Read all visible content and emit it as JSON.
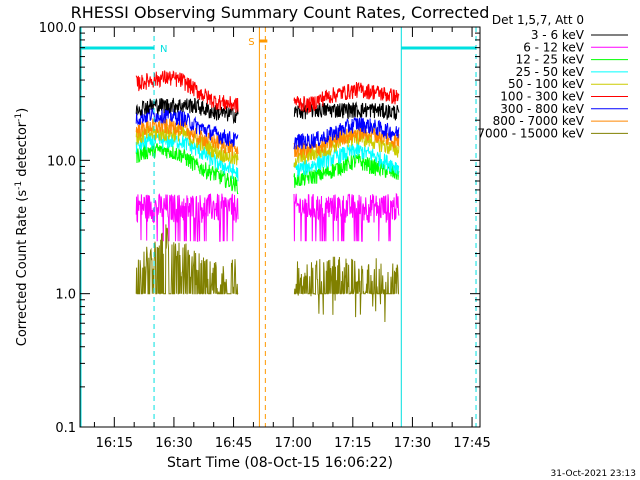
{
  "chart_data": {
    "type": "line",
    "title": "RHESSI Observing Summary Count Rates, Corrected",
    "ylabel_main": "Corrected Count Rate (s",
    "ylabel_sup1": "-1",
    "ylabel_mid": " detector",
    "ylabel_sup2": "-1",
    "ylabel_end": ")",
    "xlabel": "Start Time (08-Oct-15 16:06:22)",
    "yscale": "log",
    "ylim": [
      0.1,
      100.0
    ],
    "xlim_minutes_after_1600": [
      6.37,
      107.0
    ],
    "yticks": [
      {
        "value": 100.0,
        "label": "100.0"
      },
      {
        "value": 10.0,
        "label": "10.0"
      },
      {
        "value": 1.0,
        "label": "1.0"
      },
      {
        "value": 0.1,
        "label": "0.1"
      }
    ],
    "xticks": [
      {
        "minute": 15,
        "label": "16:15"
      },
      {
        "minute": 30,
        "label": "16:30"
      },
      {
        "minute": 45,
        "label": "16:45"
      },
      {
        "minute": 60,
        "label": "17:00"
      },
      {
        "minute": 75,
        "label": "17:15"
      },
      {
        "minute": 90,
        "label": "17:30"
      },
      {
        "minute": 105,
        "label": "17:45"
      }
    ],
    "legend": {
      "header": "Det 1,5,7, Att 0",
      "placement": "right"
    },
    "data_intervals": [
      {
        "start": 20.5,
        "end": 46.2
      },
      {
        "start": 60.2,
        "end": 86.7
      }
    ],
    "series": [
      {
        "name": "3 - 6 keV",
        "color": "#000000",
        "points": [
          [
            21,
            25
          ],
          [
            25,
            26
          ],
          [
            30,
            26
          ],
          [
            35,
            26
          ],
          [
            40,
            23
          ],
          [
            46,
            22
          ],
          [
            60,
            23
          ],
          [
            65,
            24
          ],
          [
            70,
            24
          ],
          [
            75,
            24
          ],
          [
            80,
            24
          ],
          [
            86,
            23
          ]
        ]
      },
      {
        "name": "6 - 12 keV",
        "color": "#ff00ff",
        "points": [
          [
            21,
            4.6
          ],
          [
            25,
            4.5
          ],
          [
            30,
            4.5
          ],
          [
            35,
            4.5
          ],
          [
            40,
            4.5
          ],
          [
            46,
            4.5
          ],
          [
            60,
            4.5
          ],
          [
            65,
            4.5
          ],
          [
            70,
            4.5
          ],
          [
            75,
            4.5
          ],
          [
            80,
            4.5
          ],
          [
            86,
            4.5
          ]
        ]
      },
      {
        "name": "12 - 25 keV",
        "color": "#00ff00",
        "points": [
          [
            21,
            11
          ],
          [
            24,
            12
          ],
          [
            28,
            12
          ],
          [
            32,
            11
          ],
          [
            36,
            9
          ],
          [
            40,
            8
          ],
          [
            46,
            6.5
          ],
          [
            60,
            7
          ],
          [
            64,
            7.5
          ],
          [
            68,
            8
          ],
          [
            72,
            9
          ],
          [
            76,
            10
          ],
          [
            80,
            9
          ],
          [
            86,
            8
          ]
        ]
      },
      {
        "name": "25 - 50 keV",
        "color": "#00ffff",
        "points": [
          [
            21,
            13
          ],
          [
            24,
            14
          ],
          [
            28,
            14
          ],
          [
            32,
            14
          ],
          [
            36,
            12
          ],
          [
            40,
            10
          ],
          [
            46,
            8
          ],
          [
            60,
            8.5
          ],
          [
            64,
            9
          ],
          [
            68,
            10
          ],
          [
            72,
            11
          ],
          [
            76,
            12
          ],
          [
            80,
            11
          ],
          [
            86,
            9
          ]
        ]
      },
      {
        "name": "50 - 100 keV",
        "color": "#cccc00",
        "points": [
          [
            21,
            15
          ],
          [
            24,
            16
          ],
          [
            28,
            16
          ],
          [
            32,
            16
          ],
          [
            36,
            14
          ],
          [
            40,
            12
          ],
          [
            46,
            10
          ],
          [
            60,
            10
          ],
          [
            64,
            11
          ],
          [
            68,
            12
          ],
          [
            72,
            14
          ],
          [
            76,
            15
          ],
          [
            80,
            14
          ],
          [
            86,
            12
          ]
        ]
      },
      {
        "name": "100 - 300 keV",
        "color": "#ff0000",
        "points": [
          [
            21,
            38
          ],
          [
            24,
            40
          ],
          [
            28,
            42
          ],
          [
            32,
            40
          ],
          [
            36,
            33
          ],
          [
            40,
            28
          ],
          [
            46,
            26
          ],
          [
            60,
            28
          ],
          [
            64,
            26
          ],
          [
            68,
            30
          ],
          [
            72,
            32
          ],
          [
            76,
            34
          ],
          [
            80,
            33
          ],
          [
            86,
            30
          ]
        ]
      },
      {
        "name": "300 - 800 keV",
        "color": "#0000ff",
        "points": [
          [
            21,
            21
          ],
          [
            24,
            22
          ],
          [
            28,
            22
          ],
          [
            32,
            21
          ],
          [
            36,
            18
          ],
          [
            40,
            16
          ],
          [
            46,
            14
          ],
          [
            60,
            14
          ],
          [
            64,
            14
          ],
          [
            68,
            15
          ],
          [
            72,
            17
          ],
          [
            76,
            19
          ],
          [
            80,
            18
          ],
          [
            86,
            16
          ]
        ]
      },
      {
        "name": "800 - 7000 keV",
        "color": "#ff8800",
        "points": [
          [
            21,
            17
          ],
          [
            24,
            18
          ],
          [
            28,
            18
          ],
          [
            32,
            18
          ],
          [
            36,
            15
          ],
          [
            40,
            14
          ],
          [
            46,
            12
          ],
          [
            60,
            12
          ],
          [
            64,
            12
          ],
          [
            68,
            13
          ],
          [
            72,
            15
          ],
          [
            76,
            16
          ],
          [
            80,
            16
          ],
          [
            86,
            14
          ]
        ]
      },
      {
        "name": "7000 - 15000 keV",
        "color": "#808000",
        "points": [
          [
            21,
            1.0
          ],
          [
            25,
            1.4
          ],
          [
            28,
            1.8
          ],
          [
            31,
            1.4
          ],
          [
            34,
            1.2
          ],
          [
            38,
            1.0
          ],
          [
            40,
            1.0
          ],
          [
            65,
            0.95
          ],
          [
            70,
            1.0
          ],
          [
            75,
            1.0
          ],
          [
            80,
            1.0
          ]
        ]
      }
    ],
    "markers": {
      "saa_label": "S",
      "night_label": "N",
      "saa_interval": [
        51.5,
        53.0
      ],
      "night_intervals": [
        [
          6.37,
          25.0
        ],
        [
          87.2,
          106.0
        ]
      ]
    }
  },
  "footer_timestamp": "31-Oct-2021 23:13"
}
